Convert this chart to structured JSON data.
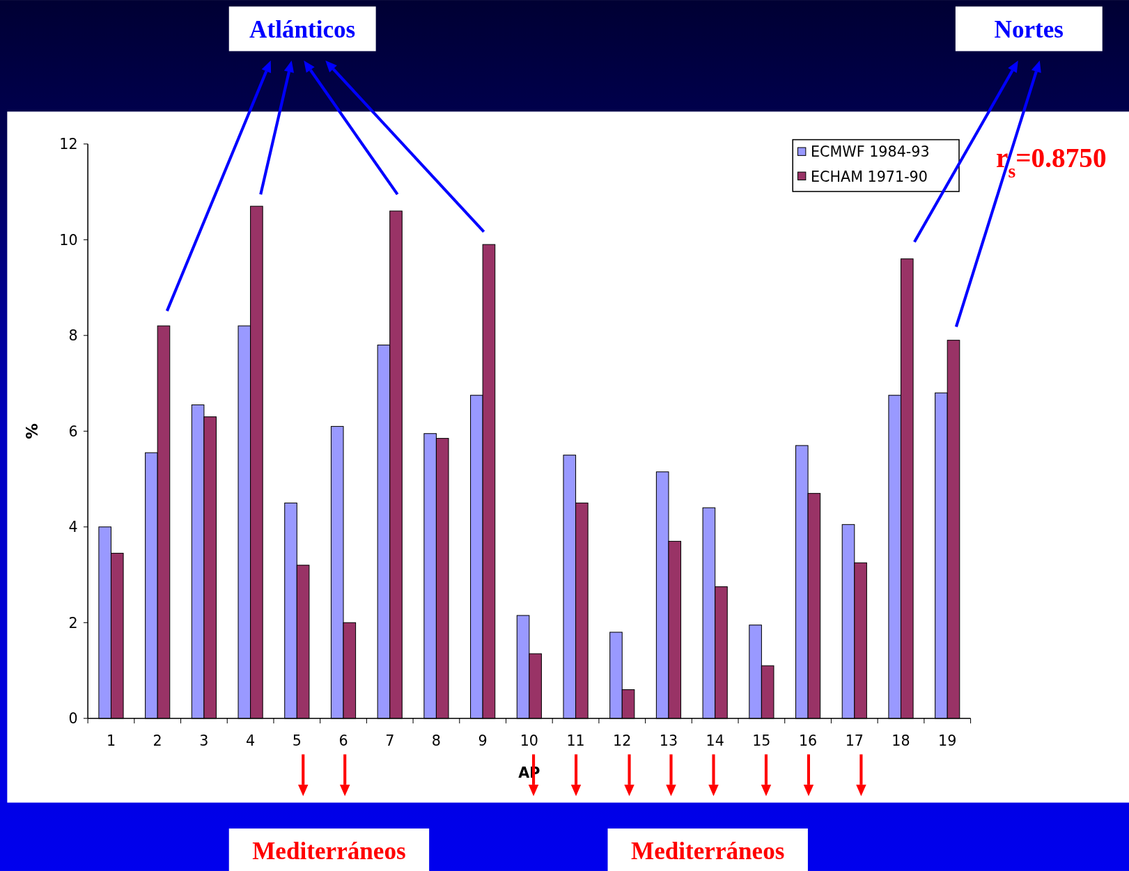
{
  "chart_data": {
    "type": "bar",
    "xlabel": "AP",
    "ylabel": "%",
    "categories": [
      "1",
      "2",
      "3",
      "4",
      "5",
      "6",
      "7",
      "8",
      "9",
      "10",
      "11",
      "12",
      "13",
      "14",
      "15",
      "16",
      "17",
      "18",
      "19"
    ],
    "series": [
      {
        "name": "ECMWF 1984-93",
        "color": "#9999ff",
        "values": [
          4.0,
          5.55,
          6.55,
          8.2,
          4.5,
          6.1,
          7.8,
          5.95,
          6.75,
          2.15,
          5.5,
          1.8,
          5.15,
          4.4,
          1.95,
          5.7,
          4.05,
          6.75,
          6.8
        ]
      },
      {
        "name": "ECHAM 1971-90",
        "color": "#993366",
        "values": [
          3.45,
          8.2,
          6.3,
          10.7,
          3.2,
          2.0,
          10.6,
          5.85,
          9.9,
          1.35,
          4.5,
          0.6,
          3.7,
          2.75,
          1.1,
          4.7,
          3.25,
          9.6,
          7.9
        ]
      }
    ],
    "ylim": [
      0,
      12
    ],
    "yticks": [
      0,
      2,
      4,
      6,
      8,
      10,
      12
    ],
    "grid": false,
    "legend": "top right",
    "annotations": [
      "Atlánticos",
      "Nortes",
      "Mediterráneos",
      "Mediterráneos",
      "r$_{s}$=0.8750"
    ]
  }
}
